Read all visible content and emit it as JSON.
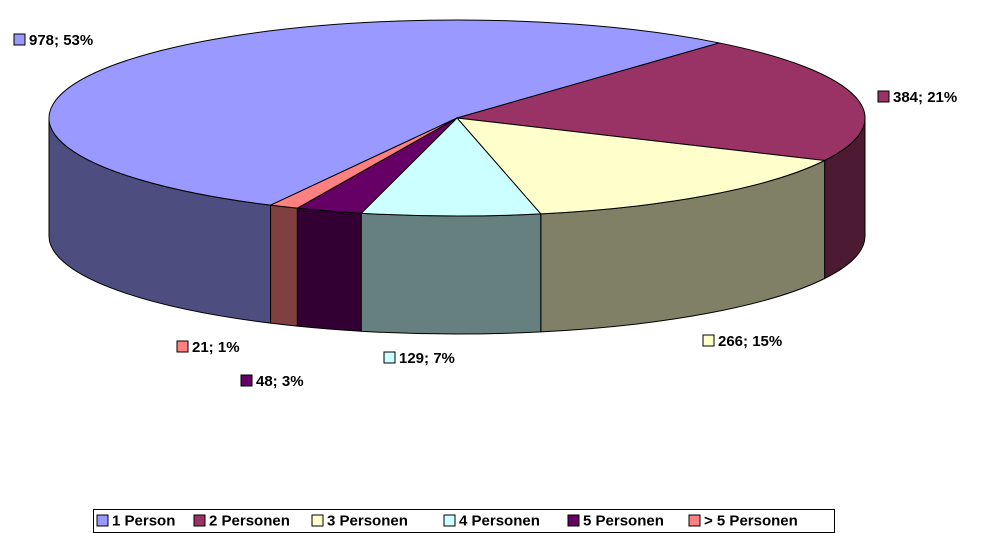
{
  "chart_data": {
    "type": "pie",
    "three_d": true,
    "categories": [
      "1 Person",
      "2 Personen",
      "3 Personen",
      "4 Personen",
      "5 Personen",
      "> 5 Personen"
    ],
    "values": [
      978,
      384,
      266,
      129,
      48,
      21
    ],
    "value_labels": [
      "978; 53%",
      "384; 21%",
      "266; 15%",
      "129; 7%",
      "48; 3%",
      "21; 1%"
    ],
    "colors": [
      "#9999ff",
      "#993366",
      "#ffffcc",
      "#ccffff",
      "#660066",
      "#ff8080"
    ],
    "legend": "bottom"
  }
}
